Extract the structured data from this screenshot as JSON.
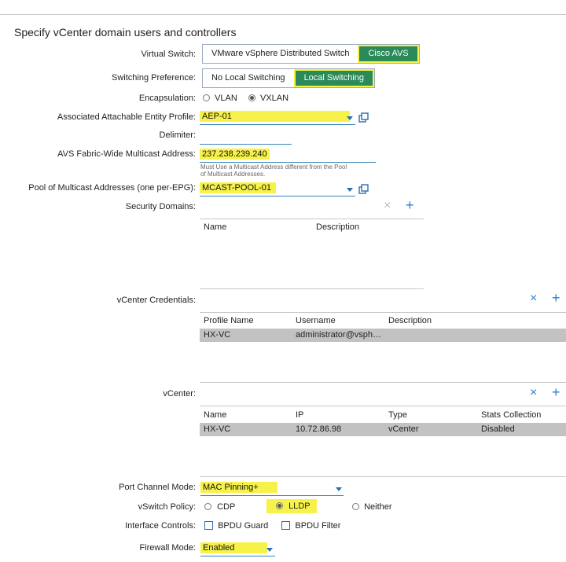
{
  "title": "Specify vCenter domain users and controllers",
  "virtual_switch": {
    "label": "Virtual Switch:",
    "options": [
      "VMware vSphere Distributed Switch",
      "Cisco AVS"
    ],
    "selected": "Cisco AVS"
  },
  "switching_pref": {
    "label": "Switching Preference:",
    "options": [
      "No Local Switching",
      "Local Switching"
    ],
    "selected": "Local Switching"
  },
  "encapsulation": {
    "label": "Encapsulation:",
    "options": [
      "VLAN",
      "VXLAN"
    ],
    "selected": "VXLAN"
  },
  "aep": {
    "label": "Associated Attachable Entity Profile:",
    "value": "AEP-01"
  },
  "delimiter": {
    "label": "Delimiter:",
    "value": ""
  },
  "multicast": {
    "label": "AVS Fabric-Wide Multicast Address:",
    "value": "237.238.239.240",
    "hint_line1": "Must Use a Multicast Address different from the Pool",
    "hint_line2": "of Multicast Addresses."
  },
  "pool": {
    "label": "Pool of Multicast Addresses (one per-EPG):",
    "value": "MCAST-POOL-01"
  },
  "security_domains": {
    "label": "Security Domains:",
    "columns": [
      "Name",
      "Description"
    ]
  },
  "vcenter_credentials": {
    "label": "vCenter Credentials:",
    "columns": [
      "Profile Name",
      "Username",
      "Description"
    ],
    "rows": [
      {
        "profile": "HX-VC",
        "username": "administrator@vsph…",
        "description": ""
      }
    ]
  },
  "vcenter": {
    "label": "vCenter:",
    "columns": [
      "Name",
      "IP",
      "Type",
      "Stats Collection"
    ],
    "rows": [
      {
        "name": "HX-VC",
        "ip": "10.72.86.98",
        "type": "vCenter",
        "stats": "Disabled"
      }
    ]
  },
  "port_channel": {
    "label": "Port Channel Mode:",
    "value": "MAC Pinning+"
  },
  "vswitch_policy": {
    "label": "vSwitch Policy:",
    "options": [
      "CDP",
      "LLDP",
      "Neither"
    ],
    "selected": "LLDP"
  },
  "interface_controls": {
    "label": "Interface Controls:",
    "options": [
      "BPDU Guard",
      "BPDU Filter"
    ]
  },
  "firewall": {
    "label": "Firewall Mode:",
    "value": "Enabled"
  },
  "colors": {
    "accent": "#2a7bd6",
    "selected_toggle": "#2b8a5a",
    "highlight": "#f7f24a"
  },
  "icons": {
    "remove": "close-icon",
    "add": "plus-icon",
    "open": "external-link-icon"
  }
}
